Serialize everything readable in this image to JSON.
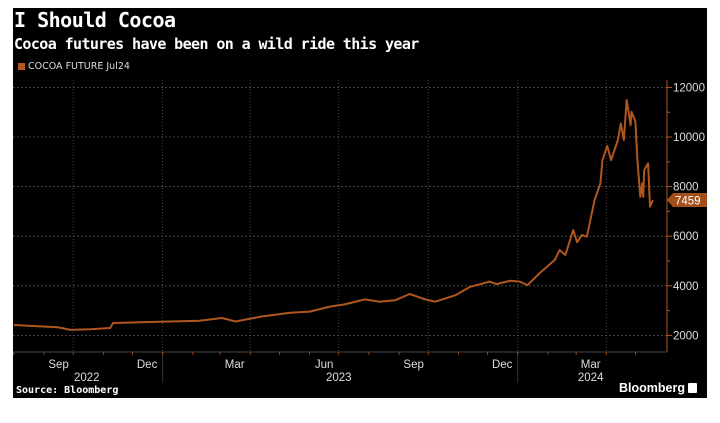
{
  "title": "I Should Cocoa",
  "subtitle": "Cocoa futures have been on a wild ride this year",
  "source": "Source: Bloomberg",
  "brand": "Bloomberg",
  "colors": {
    "series": "#b0561f",
    "background": "#000000",
    "last_value_box": "#a4501c"
  },
  "chart_data": {
    "type": "line",
    "title": "I Should Cocoa",
    "subtitle": "Cocoa futures have been on a wild ride this year",
    "legend_placement": "top-left",
    "grid": true,
    "ylim": [
      1200,
      12400
    ],
    "y_ticks": [
      "2000",
      "4000",
      "6000",
      "8000",
      "10000",
      "12000"
    ],
    "x_month_labels": [
      "Sep",
      "Dec",
      "Mar",
      "Jun",
      "Sep",
      "Dec",
      "Mar"
    ],
    "x_month_dates": [
      "2022-09-16",
      "2022-12-16",
      "2023-03-16",
      "2023-06-16",
      "2023-09-16",
      "2023-12-16",
      "2024-03-16"
    ],
    "x_year_labels": [
      "2022",
      "2023",
      "2024"
    ],
    "last_value_label": "7459",
    "series": [
      {
        "name": "COCOA FUTURE Jul24",
        "dates": [
          "2022-08-01",
          "2022-09-15",
          "2022-09-28",
          "2022-10-18",
          "2022-11-08",
          "2022-11-11",
          "2022-12-19",
          "2023-01-09",
          "2023-02-08",
          "2023-03-03",
          "2023-03-17",
          "2023-04-11",
          "2023-05-12",
          "2023-06-01",
          "2023-06-22",
          "2023-07-07",
          "2023-07-28",
          "2023-08-12",
          "2023-08-28",
          "2023-09-12",
          "2023-09-28",
          "2023-10-08",
          "2023-10-29",
          "2023-11-13",
          "2023-12-03",
          "2023-12-10",
          "2023-12-24",
          "2024-01-03",
          "2024-01-11",
          "2024-01-24",
          "2024-02-08",
          "2024-02-13",
          "2024-02-19",
          "2024-02-27",
          "2024-03-02",
          "2024-03-07",
          "2024-03-12",
          "2024-03-15",
          "2024-03-20",
          "2024-03-26",
          "2024-03-28",
          "2024-04-02",
          "2024-04-06",
          "2024-04-13",
          "2024-04-16",
          "2024-04-19",
          "2024-04-22",
          "2024-04-26",
          "2024-04-27",
          "2024-05-01",
          "2024-05-03",
          "2024-05-06",
          "2024-05-08",
          "2024-05-09",
          "2024-05-10",
          "2024-05-14",
          "2024-05-16",
          "2024-05-19"
        ],
        "values": [
          2420,
          2330,
          2220,
          2250,
          2300,
          2500,
          2540,
          2560,
          2590,
          2700,
          2560,
          2750,
          2910,
          2960,
          3160,
          3250,
          3450,
          3360,
          3420,
          3670,
          3450,
          3360,
          3620,
          3960,
          4170,
          4070,
          4200,
          4170,
          4030,
          4530,
          5040,
          5440,
          5240,
          6250,
          5760,
          6050,
          5980,
          6520,
          7460,
          8130,
          9070,
          9640,
          9070,
          9880,
          10550,
          9880,
          11490,
          10480,
          11020,
          10620,
          9070,
          7590,
          8130,
          7590,
          8670,
          8940,
          7190,
          7459
        ]
      }
    ]
  }
}
